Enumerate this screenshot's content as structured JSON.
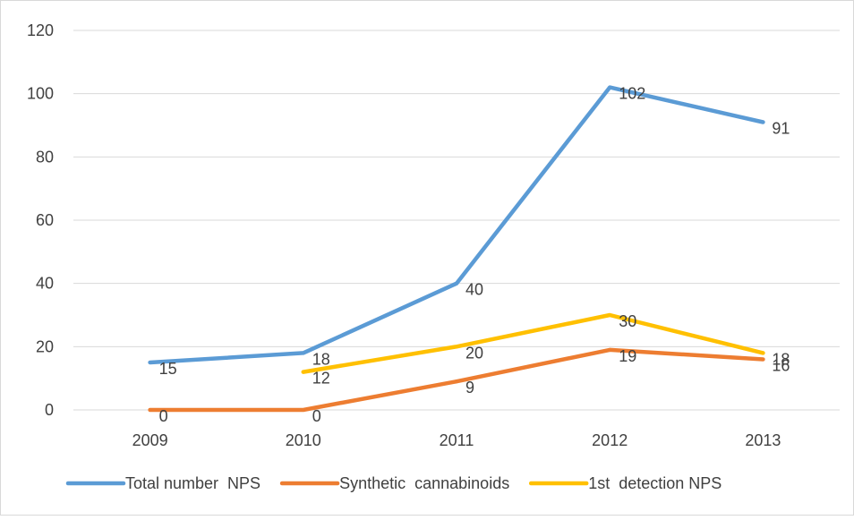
{
  "chart_data": {
    "type": "line",
    "title": "",
    "xlabel": "",
    "ylabel": "",
    "categories": [
      "2009",
      "2010",
      "2011",
      "2012",
      "2013"
    ],
    "ylim": [
      0,
      120
    ],
    "yticks": [
      0,
      20,
      40,
      60,
      80,
      100,
      120
    ],
    "grid": true,
    "legend_position": "bottom",
    "series": [
      {
        "name": "Total number  NPS",
        "color": "#5b9bd5",
        "values": [
          15,
          18,
          40,
          102,
          91
        ],
        "labels": [
          "15",
          "18",
          "40",
          "102",
          "91"
        ]
      },
      {
        "name": "Synthetic  cannabinoids",
        "color": "#ed7d31",
        "values": [
          0,
          0,
          9,
          19,
          16
        ],
        "labels": [
          "0",
          "0",
          "9",
          "19",
          "16"
        ]
      },
      {
        "name": "1st  detection NPS",
        "color": "#ffc000",
        "values": [
          null,
          12,
          20,
          30,
          18
        ],
        "labels": [
          "",
          "12",
          "20",
          "30",
          "18"
        ]
      }
    ]
  }
}
